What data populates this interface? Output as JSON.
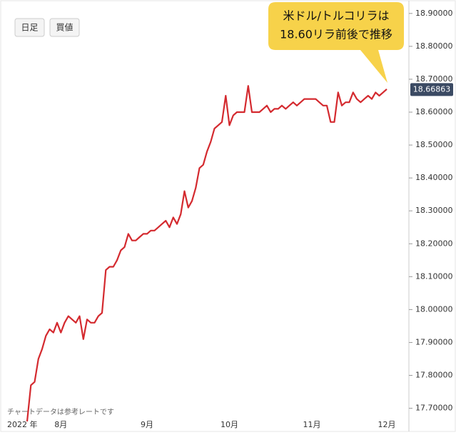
{
  "chart_data": {
    "type": "line",
    "buttons": [
      "日足",
      "買値"
    ],
    "callout": [
      "米ドル/トルコリラは",
      "18.60リラ前後で推移"
    ],
    "note": "チャートデータは参考レートです",
    "year_label": "2022 年",
    "current_value": 18.66863,
    "color": "#d42a2f",
    "categories": [
      null,
      null,
      null,
      null,
      null,
      null,
      null,
      null,
      null,
      "8月",
      null,
      null,
      null,
      null,
      null,
      null,
      null,
      null,
      null,
      null,
      null,
      null,
      null,
      null,
      null,
      null,
      null,
      null,
      null,
      null,
      null,
      null,
      "9月",
      null,
      null,
      null,
      null,
      null,
      null,
      null,
      null,
      null,
      null,
      null,
      null,
      null,
      null,
      null,
      null,
      null,
      null,
      null,
      null,
      null,
      "10月",
      null,
      null,
      null,
      null,
      null,
      null,
      null,
      null,
      null,
      null,
      null,
      null,
      null,
      null,
      null,
      null,
      null,
      null,
      null,
      null,
      null,
      "11月",
      null,
      null,
      null,
      null,
      null,
      null,
      null,
      null,
      null,
      null,
      null,
      null,
      null,
      null,
      null,
      null,
      null,
      null,
      null,
      "12月"
    ],
    "values": [
      17.66,
      17.77,
      17.78,
      17.85,
      17.88,
      17.92,
      17.94,
      17.93,
      17.96,
      17.93,
      17.96,
      17.98,
      17.97,
      17.96,
      17.98,
      17.91,
      17.97,
      17.96,
      17.96,
      17.98,
      17.99,
      18.12,
      18.13,
      18.13,
      18.15,
      18.18,
      18.19,
      18.23,
      18.21,
      18.21,
      18.22,
      18.23,
      18.23,
      18.24,
      18.24,
      18.25,
      18.26,
      18.27,
      18.25,
      18.28,
      18.26,
      18.29,
      18.36,
      18.31,
      18.33,
      18.37,
      18.43,
      18.44,
      18.48,
      18.51,
      18.55,
      18.56,
      18.57,
      18.65,
      18.56,
      18.59,
      18.6,
      18.6,
      18.6,
      18.68,
      18.6,
      18.6,
      18.6,
      18.61,
      18.62,
      18.6,
      18.61,
      18.61,
      18.62,
      18.61,
      18.62,
      18.63,
      18.62,
      18.63,
      18.64,
      18.64,
      18.64,
      18.64,
      18.63,
      18.62,
      18.62,
      18.57,
      18.57,
      18.66,
      18.62,
      18.63,
      18.63,
      18.66,
      18.64,
      18.63,
      18.64,
      18.65,
      18.64,
      18.66,
      18.65,
      18.66,
      18.67
    ],
    "ylim": [
      17.66,
      18.93
    ],
    "yticks": [
      {
        "value": 17.7,
        "label": "17.70000"
      },
      {
        "value": 17.8,
        "label": "17.80000"
      },
      {
        "value": 17.9,
        "label": "17.90000"
      },
      {
        "value": 18.0,
        "label": "18.00000"
      },
      {
        "value": 18.1,
        "label": "18.10000"
      },
      {
        "value": 18.2,
        "label": "18.20000"
      },
      {
        "value": 18.3,
        "label": "18.30000"
      },
      {
        "value": 18.4,
        "label": "18.40000"
      },
      {
        "value": 18.5,
        "label": "18.50000"
      },
      {
        "value": 18.6,
        "label": "18.60000"
      },
      {
        "value": 18.7,
        "label": "18.70000"
      },
      {
        "value": 18.8,
        "label": "18.80000"
      },
      {
        "value": 18.9,
        "label": "18.90000"
      }
    ]
  }
}
